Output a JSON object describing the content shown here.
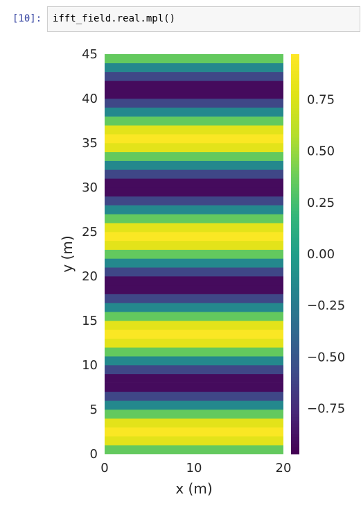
{
  "cell": {
    "prompt": "[10]:",
    "code": "ifft_field.real.mpl()"
  },
  "chart_data": {
    "type": "heatmap",
    "colormap": "viridis",
    "xlabel": "x (m)",
    "ylabel": "y (m)",
    "xlim": [
      0,
      20
    ],
    "ylim": [
      0,
      45
    ],
    "xticks": [
      0,
      10,
      20
    ],
    "yticks": [
      0,
      5,
      10,
      15,
      20,
      25,
      30,
      35,
      40,
      45
    ],
    "grid": false,
    "row_height": 1,
    "row_values": [
      0.35,
      0.8,
      0.95,
      0.8,
      0.35,
      -0.15,
      -0.6,
      -0.92,
      -0.92,
      -0.6,
      -0.15,
      0.35,
      0.8,
      0.95,
      0.8,
      0.35,
      -0.15,
      -0.6,
      -0.92,
      -0.92,
      -0.6,
      -0.15,
      0.35,
      0.8,
      0.95,
      0.8,
      0.35,
      -0.15,
      -0.6,
      -0.92,
      -0.92,
      -0.6,
      -0.15,
      0.35,
      0.8,
      0.95,
      0.8,
      0.35,
      -0.15,
      -0.6,
      -0.92,
      -0.92,
      -0.6,
      -0.15,
      0.35
    ],
    "colorbar": {
      "vmin": -0.97,
      "vmax": 0.97,
      "ticks": [
        0.75,
        0.5,
        0.25,
        0.0,
        -0.25,
        -0.5,
        -0.75
      ],
      "tick_labels": [
        "0.75",
        "0.50",
        "0.25",
        "0.00",
        "−0.25",
        "−0.50",
        "−0.75"
      ]
    }
  }
}
